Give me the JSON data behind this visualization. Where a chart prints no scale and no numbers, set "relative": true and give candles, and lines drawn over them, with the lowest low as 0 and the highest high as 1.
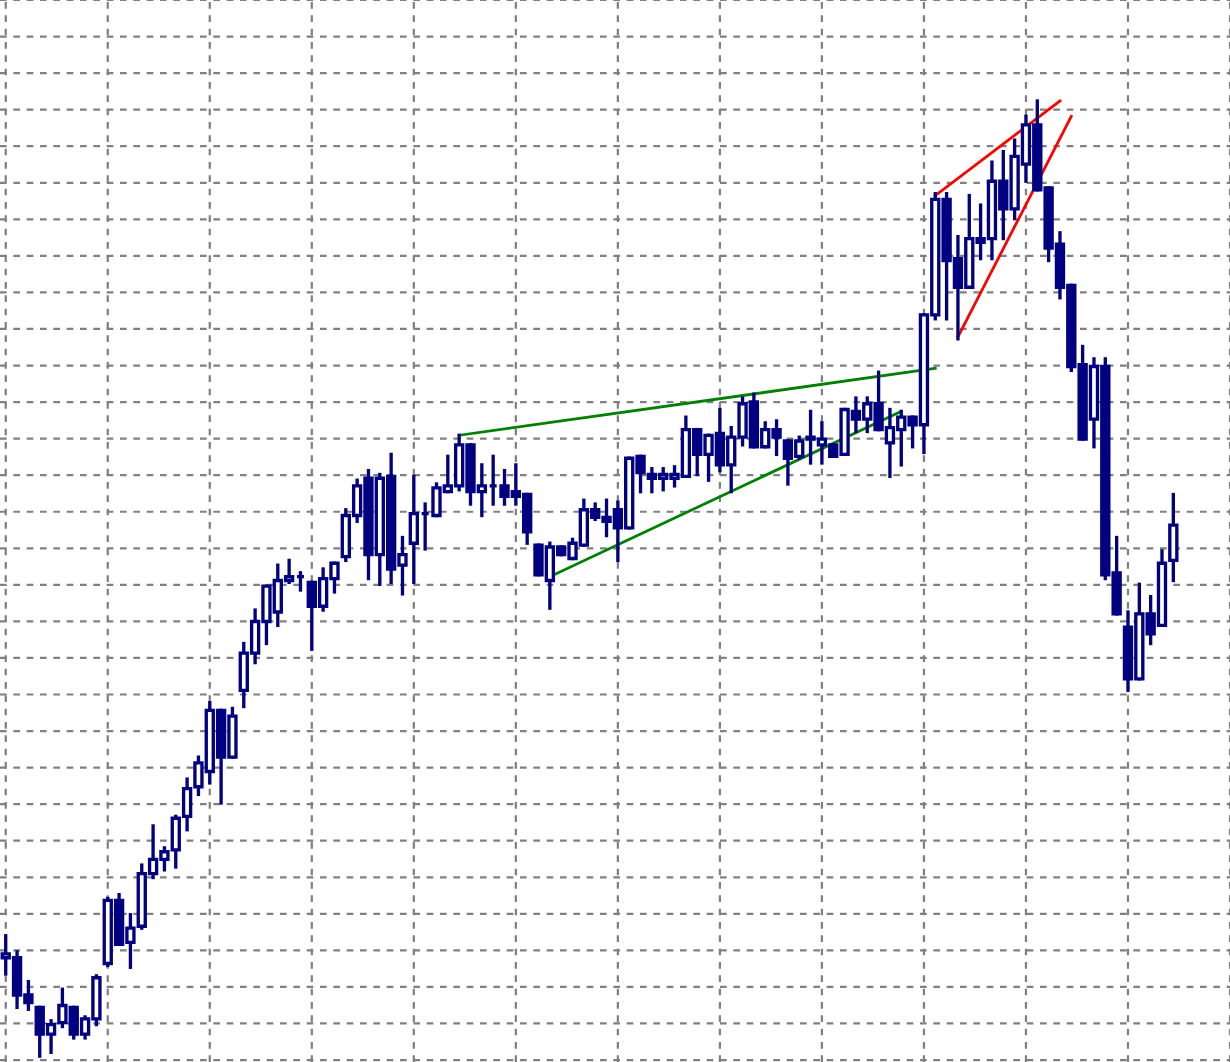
{
  "chart_data": {
    "type": "candlestick",
    "relative": true,
    "grid": true,
    "tick_labels": false,
    "color": "#000080",
    "categories": [
      null,
      null,
      null,
      null,
      null,
      null,
      null,
      null,
      null,
      null,
      null,
      null,
      null,
      null,
      null,
      null,
      null,
      null,
      null,
      null,
      null,
      null,
      null,
      null,
      null,
      null,
      null,
      null,
      null,
      null,
      null,
      null,
      null,
      null,
      null,
      null,
      null,
      null,
      null,
      null,
      null,
      null,
      null,
      null,
      null,
      null,
      null,
      null,
      null,
      null,
      null,
      null,
      null,
      null,
      null,
      null,
      null,
      null,
      null,
      null,
      null,
      null,
      null,
      null,
      null,
      null,
      null,
      null,
      null,
      null,
      null,
      null,
      null,
      null,
      null,
      null,
      null,
      null,
      null,
      null,
      null,
      null,
      null,
      null,
      null,
      null,
      null,
      null,
      null,
      null,
      null,
      null,
      null,
      null,
      null,
      null,
      null,
      null,
      null,
      null,
      null,
      null,
      null,
      null
    ],
    "ohlc": [
      [
        0.103,
        0.126,
        0.086,
        0.107
      ],
      [
        0.103,
        0.109,
        0.051,
        0.064
      ],
      [
        0.064,
        0.078,
        0.049,
        0.056
      ],
      [
        0.051,
        0.051,
        0.0,
        0.023
      ],
      [
        0.023,
        0.037,
        0.004,
        0.033
      ],
      [
        0.035,
        0.07,
        0.031,
        0.053
      ],
      [
        0.051,
        0.051,
        0.019,
        0.023
      ],
      [
        0.023,
        0.041,
        0.019,
        0.039
      ],
      [
        0.039,
        0.084,
        0.033,
        0.082
      ],
      [
        0.097,
        0.165,
        0.095,
        0.163
      ],
      [
        0.163,
        0.169,
        0.117,
        0.117
      ],
      [
        0.119,
        0.148,
        0.093,
        0.134
      ],
      [
        0.136,
        0.2,
        0.134,
        0.191
      ],
      [
        0.191,
        0.241,
        0.187,
        0.206
      ],
      [
        0.206,
        0.218,
        0.195,
        0.214
      ],
      [
        0.216,
        0.251,
        0.198,
        0.249
      ],
      [
        0.251,
        0.29,
        0.237,
        0.28
      ],
      [
        0.282,
        0.313,
        0.274,
        0.307
      ],
      [
        0.298,
        0.37,
        0.286,
        0.362
      ],
      [
        0.362,
        0.362,
        0.265,
        0.313
      ],
      [
        0.313,
        0.364,
        0.313,
        0.356
      ],
      [
        0.383,
        0.432,
        0.366,
        0.422
      ],
      [
        0.422,
        0.467,
        0.412,
        0.455
      ],
      [
        0.455,
        0.492,
        0.432,
        0.492
      ],
      [
        0.465,
        0.514,
        0.451,
        0.498
      ],
      [
        0.498,
        0.519,
        0.496,
        0.502
      ],
      [
        0.502,
        0.506,
        0.488,
        0.502
      ],
      [
        0.496,
        0.496,
        0.426,
        0.471
      ],
      [
        0.471,
        0.51,
        0.467,
        0.5
      ],
      [
        0.5,
        0.516,
        0.486,
        0.516
      ],
      [
        0.523,
        0.572,
        0.519,
        0.566
      ],
      [
        0.566,
        0.603,
        0.56,
        0.597
      ],
      [
        0.605,
        0.613,
        0.5,
        0.525
      ],
      [
        0.525,
        0.609,
        0.494,
        0.605
      ],
      [
        0.607,
        0.63,
        0.496,
        0.51
      ],
      [
        0.514,
        0.543,
        0.484,
        0.525
      ],
      [
        0.537,
        0.607,
        0.496,
        0.568
      ],
      [
        0.568,
        0.578,
        0.531,
        0.568
      ],
      [
        0.566,
        0.599,
        0.566,
        0.595
      ],
      [
        0.591,
        0.628,
        0.591,
        0.597
      ],
      [
        0.597,
        0.65,
        0.593,
        0.64
      ],
      [
        0.64,
        0.64,
        0.578,
        0.591
      ],
      [
        0.591,
        0.619,
        0.566,
        0.597
      ],
      [
        0.597,
        0.628,
        0.578,
        0.597
      ],
      [
        0.597,
        0.613,
        0.578,
        0.586
      ],
      [
        0.591,
        0.619,
        0.578,
        0.586
      ],
      [
        0.588,
        0.588,
        0.537,
        0.549
      ],
      [
        0.535,
        0.535,
        0.504,
        0.504
      ],
      [
        0.498,
        0.537,
        0.469,
        0.533
      ],
      [
        0.533,
        0.533,
        0.525,
        0.525
      ],
      [
        0.521,
        0.541,
        0.521,
        0.537
      ],
      [
        0.535,
        0.582,
        0.535,
        0.572
      ],
      [
        0.572,
        0.578,
        0.562,
        0.564
      ],
      [
        0.564,
        0.582,
        0.545,
        0.56
      ],
      [
        0.572,
        0.58,
        0.519,
        0.553
      ],
      [
        0.553,
        0.626,
        0.553,
        0.626
      ],
      [
        0.628,
        0.628,
        0.591,
        0.611
      ],
      [
        0.609,
        0.615,
        0.591,
        0.605
      ],
      [
        0.605,
        0.615,
        0.593,
        0.609
      ],
      [
        0.605,
        0.617,
        0.597,
        0.609
      ],
      [
        0.607,
        0.669,
        0.607,
        0.656
      ],
      [
        0.656,
        0.656,
        0.609,
        0.63
      ],
      [
        0.63,
        0.65,
        0.603,
        0.65
      ],
      [
        0.652,
        0.677,
        0.613,
        0.619
      ],
      [
        0.619,
        0.658,
        0.591,
        0.648
      ],
      [
        0.648,
        0.689,
        0.64,
        0.683
      ],
      [
        0.685,
        0.693,
        0.638,
        0.638
      ],
      [
        0.638,
        0.663,
        0.638,
        0.656
      ],
      [
        0.656,
        0.665,
        0.63,
        0.648
      ],
      [
        0.644,
        0.644,
        0.599,
        0.626
      ],
      [
        0.628,
        0.648,
        0.626,
        0.644
      ],
      [
        0.648,
        0.675,
        0.621,
        0.646
      ],
      [
        0.64,
        0.663,
        0.621,
        0.646
      ],
      [
        0.64,
        0.64,
        0.628,
        0.628
      ],
      [
        0.63,
        0.677,
        0.63,
        0.677
      ],
      [
        0.675,
        0.689,
        0.654,
        0.667
      ],
      [
        0.667,
        0.689,
        0.654,
        0.683
      ],
      [
        0.683,
        0.716,
        0.656,
        0.656
      ],
      [
        0.642,
        0.677,
        0.607,
        0.658
      ],
      [
        0.656,
        0.675,
        0.619,
        0.669
      ],
      [
        0.669,
        0.669,
        0.638,
        0.661
      ],
      [
        0.661,
        0.776,
        0.632,
        0.776
      ],
      [
        0.776,
        0.903,
        0.772,
        0.897
      ],
      [
        0.897,
        0.903,
        0.772,
        0.833
      ],
      [
        0.835,
        0.858,
        0.751,
        0.805
      ],
      [
        0.805,
        0.901,
        0.805,
        0.856
      ],
      [
        0.856,
        0.891,
        0.835,
        0.852
      ],
      [
        0.856,
        0.936,
        0.835,
        0.916
      ],
      [
        0.916,
        0.947,
        0.856,
        0.887
      ],
      [
        0.887,
        0.959,
        0.877,
        0.942
      ],
      [
        0.934,
        0.984,
        0.916,
        0.975
      ],
      [
        0.975,
        1.0,
        0.907,
        0.907
      ],
      [
        0.909,
        0.909,
        0.833,
        0.846
      ],
      [
        0.85,
        0.862,
        0.794,
        0.805
      ],
      [
        0.807,
        0.807,
        0.718,
        0.722
      ],
      [
        0.724,
        0.743,
        0.646,
        0.646
      ],
      [
        0.667,
        0.73,
        0.638,
        0.722
      ],
      [
        0.722,
        0.73,
        0.5,
        0.504
      ],
      [
        0.506,
        0.543,
        0.463,
        0.463
      ],
      [
        0.449,
        0.465,
        0.383,
        0.395
      ],
      [
        0.395,
        0.494,
        0.395,
        0.463
      ],
      [
        0.463,
        0.481,
        0.432,
        0.442
      ],
      [
        0.451,
        0.529,
        0.451,
        0.516
      ],
      [
        0.519,
        0.588,
        0.498,
        0.556
      ]
    ],
    "series": [
      {
        "type": "line",
        "color": "#008000",
        "values": [
          null,
          null,
          null,
          null,
          null,
          null,
          null,
          null,
          null,
          null,
          null,
          null,
          null,
          null,
          null,
          null,
          null,
          null,
          null,
          null,
          null,
          null,
          null,
          null,
          null,
          null,
          null,
          null,
          null,
          null,
          null,
          null,
          null,
          null,
          null,
          null,
          null,
          null,
          null,
          null,
          0.65,
          null,
          null,
          null,
          null,
          null,
          null,
          null,
          null,
          null,
          null,
          null,
          null,
          null,
          null,
          null,
          null,
          null,
          null,
          null,
          null,
          null,
          null,
          null,
          null,
          null,
          null,
          null,
          null,
          null,
          null,
          null,
          null,
          null,
          null,
          null,
          null,
          null,
          null,
          null,
          null,
          null,
          0.72,
          null,
          null,
          null,
          null,
          null,
          null,
          null,
          null,
          null,
          null,
          null,
          null,
          null,
          null,
          null,
          null,
          null,
          null,
          null,
          null,
          null
        ]
      },
      {
        "type": "line",
        "color": "#008000",
        "values": [
          null,
          null,
          null,
          null,
          null,
          null,
          null,
          null,
          null,
          null,
          null,
          null,
          null,
          null,
          null,
          null,
          null,
          null,
          null,
          null,
          null,
          null,
          null,
          null,
          null,
          null,
          null,
          null,
          null,
          null,
          null,
          null,
          null,
          null,
          null,
          null,
          null,
          null,
          null,
          null,
          null,
          null,
          null,
          null,
          null,
          null,
          null,
          null,
          0.502,
          null,
          null,
          null,
          null,
          null,
          null,
          null,
          null,
          null,
          null,
          null,
          null,
          null,
          null,
          null,
          null,
          null,
          null,
          null,
          null,
          null,
          null,
          null,
          null,
          null,
          null,
          null,
          null,
          null,
          null,
          0.675,
          null,
          null,
          null,
          null,
          null,
          null,
          null,
          null,
          null,
          null,
          null,
          null,
          null,
          null,
          null,
          null,
          null,
          null,
          null,
          null,
          null,
          null,
          null,
          null
        ]
      },
      {
        "type": "line",
        "color": "#ff0000",
        "values": [
          null,
          null,
          null,
          null,
          null,
          null,
          null,
          null,
          null,
          null,
          null,
          null,
          null,
          null,
          null,
          null,
          null,
          null,
          null,
          null,
          null,
          null,
          null,
          null,
          null,
          null,
          null,
          null,
          null,
          null,
          null,
          null,
          null,
          null,
          null,
          null,
          null,
          null,
          null,
          null,
          null,
          null,
          null,
          null,
          null,
          null,
          null,
          null,
          null,
          null,
          null,
          null,
          null,
          null,
          null,
          null,
          null,
          null,
          null,
          null,
          null,
          null,
          null,
          null,
          null,
          null,
          null,
          null,
          null,
          null,
          null,
          null,
          null,
          null,
          null,
          null,
          null,
          null,
          null,
          null,
          null,
          null,
          0.901,
          null,
          null,
          null,
          null,
          null,
          null,
          null,
          null,
          null,
          null,
          1.0,
          null,
          null,
          null,
          null,
          null,
          null,
          null,
          null,
          null,
          null
        ]
      },
      {
        "type": "line",
        "color": "#ff0000",
        "values": [
          null,
          null,
          null,
          null,
          null,
          null,
          null,
          null,
          null,
          null,
          null,
          null,
          null,
          null,
          null,
          null,
          null,
          null,
          null,
          null,
          null,
          null,
          null,
          null,
          null,
          null,
          null,
          null,
          null,
          null,
          null,
          null,
          null,
          null,
          null,
          null,
          null,
          null,
          null,
          null,
          null,
          null,
          null,
          null,
          null,
          null,
          null,
          null,
          null,
          null,
          null,
          null,
          null,
          null,
          null,
          null,
          null,
          null,
          null,
          null,
          null,
          null,
          null,
          null,
          null,
          null,
          null,
          null,
          null,
          null,
          null,
          null,
          null,
          null,
          null,
          null,
          null,
          null,
          null,
          null,
          null,
          null,
          null,
          null,
          0.753,
          null,
          null,
          null,
          null,
          null,
          null,
          null,
          null,
          null,
          0.984,
          null,
          null,
          null,
          null,
          null,
          null,
          null,
          null,
          null
        ]
      }
    ]
  }
}
